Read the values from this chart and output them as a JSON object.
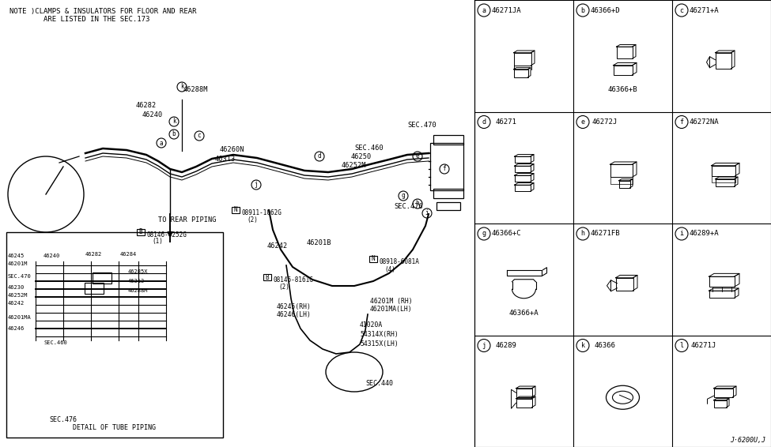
{
  "bg_color": "#ffffff",
  "line_color": "#000000",
  "cell_info": [
    [
      "a",
      0,
      0,
      "46271JA",
      null
    ],
    [
      "b",
      1,
      0,
      "46366+D",
      "46366+B"
    ],
    [
      "c",
      2,
      0,
      "46271+A",
      null
    ],
    [
      "d",
      0,
      1,
      "46271",
      null
    ],
    [
      "e",
      1,
      1,
      "46272J",
      null
    ],
    [
      "f",
      2,
      1,
      "46272NA",
      null
    ],
    [
      "g",
      0,
      2,
      "46366+C",
      "46366+A"
    ],
    [
      "h",
      1,
      2,
      "46271FB",
      null
    ],
    [
      "i",
      2,
      2,
      "46289+A",
      null
    ],
    [
      "j",
      0,
      3,
      "46289",
      null
    ],
    [
      "k",
      1,
      3,
      "46366",
      null
    ],
    [
      "l",
      2,
      3,
      "46271J",
      null
    ]
  ],
  "rpx0": 600,
  "rpx1": 975,
  "rpy0": 0,
  "rpy1": 566,
  "note_line1": "NOTE )CLAMPS & INSULATORS FOR FLOOR AND REAR",
  "note_line2": "        ARE LISTED IN THE SEC.173",
  "watermark": "J·6200U,J"
}
